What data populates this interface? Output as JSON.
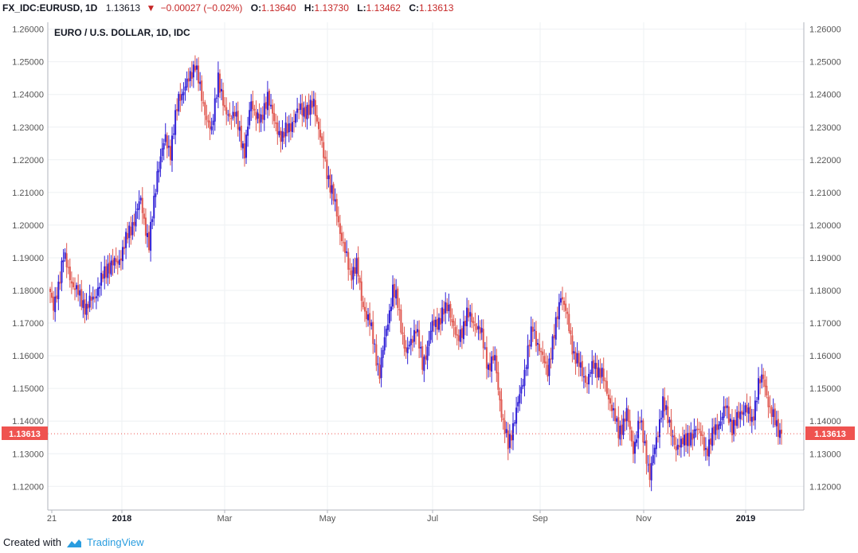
{
  "header": {
    "symbol": "FX_IDC:EURUSD, 1D",
    "last": "1.13613",
    "change": "−0.00027 (−0.02%)",
    "o_label": "O:",
    "o_value": "1.13640",
    "h_label": "H:",
    "h_value": "1.13730",
    "l_label": "L:",
    "l_value": "1.13462",
    "c_label": "C:",
    "c_value": "1.13613"
  },
  "footer": {
    "created_with": "Created with",
    "brand": "TradingView"
  },
  "chart_data": {
    "type": "candlestick",
    "title": "EURO / U.S. DOLLAR, 1D, IDC",
    "x_tick_labels": [
      "21",
      "2018",
      "Mar",
      "May",
      "Jul",
      "Sep",
      "Nov",
      "2019"
    ],
    "y_tick_labels": [
      "1.26000",
      "1.25000",
      "1.24000",
      "1.23000",
      "1.22000",
      "1.21000",
      "1.20000",
      "1.19000",
      "1.18000",
      "1.17000",
      "1.16000",
      "1.15000",
      "1.14000",
      "1.13000",
      "1.12000"
    ],
    "ylim": [
      1.116,
      1.264
    ],
    "last_price_label": "1.13613",
    "grid": true,
    "colors": {
      "up": "#2f1fd6",
      "down": "#e0574f",
      "last_price_bg": "#ef5350",
      "grid": "#eef0f3",
      "axis_text": "#555555"
    },
    "anchors": [
      [
        0,
        1.1795
      ],
      [
        2,
        1.1735
      ],
      [
        8,
        1.1905
      ],
      [
        14,
        1.1815
      ],
      [
        22,
        1.1745
      ],
      [
        27,
        1.1785
      ],
      [
        35,
        1.1875
      ],
      [
        41,
        1.1885
      ],
      [
        50,
        1.2005
      ],
      [
        55,
        1.2075
      ],
      [
        60,
        1.1935
      ],
      [
        65,
        1.2165
      ],
      [
        70,
        1.2265
      ],
      [
        73,
        1.2225
      ],
      [
        78,
        1.239
      ],
      [
        84,
        1.244
      ],
      [
        88,
        1.25
      ],
      [
        92,
        1.2385
      ],
      [
        98,
        1.228
      ],
      [
        102,
        1.246
      ],
      [
        106,
        1.234
      ],
      [
        112,
        1.234
      ],
      [
        118,
        1.2225
      ],
      [
        122,
        1.2375
      ],
      [
        128,
        1.231
      ],
      [
        132,
        1.2405
      ],
      [
        136,
        1.231
      ],
      [
        141,
        1.227
      ],
      [
        145,
        1.23
      ],
      [
        152,
        1.236
      ],
      [
        157,
        1.2345
      ],
      [
        160,
        1.238
      ],
      [
        166,
        1.221
      ],
      [
        172,
        1.208
      ],
      [
        176,
        1.1985
      ],
      [
        182,
        1.185
      ],
      [
        186,
        1.188
      ],
      [
        189,
        1.177
      ],
      [
        194,
        1.17
      ],
      [
        200,
        1.1545
      ],
      [
        204,
        1.168
      ],
      [
        208,
        1.18
      ],
      [
        211,
        1.176
      ],
      [
        216,
        1.16
      ],
      [
        222,
        1.169
      ],
      [
        226,
        1.157
      ],
      [
        232,
        1.169
      ],
      [
        236,
        1.171
      ],
      [
        242,
        1.1755
      ],
      [
        247,
        1.164
      ],
      [
        253,
        1.1725
      ],
      [
        258,
        1.17
      ],
      [
        262,
        1.166
      ],
      [
        266,
        1.1565
      ],
      [
        270,
        1.159
      ],
      [
        275,
        1.1385
      ],
      [
        278,
        1.133
      ],
      [
        283,
        1.1425
      ],
      [
        288,
        1.1555
      ],
      [
        293,
        1.169
      ],
      [
        298,
        1.16
      ],
      [
        302,
        1.156
      ],
      [
        306,
        1.166
      ],
      [
        310,
        1.1795
      ],
      [
        314,
        1.171
      ],
      [
        318,
        1.1605
      ],
      [
        322,
        1.156
      ],
      [
        326,
        1.152
      ],
      [
        330,
        1.1575
      ],
      [
        335,
        1.154
      ],
      [
        340,
        1.146
      ],
      [
        345,
        1.1365
      ],
      [
        350,
        1.142
      ],
      [
        354,
        1.1315
      ],
      [
        358,
        1.14
      ],
      [
        361,
        1.133
      ],
      [
        364,
        1.1225
      ],
      [
        368,
        1.135
      ],
      [
        372,
        1.145
      ],
      [
        376,
        1.14
      ],
      [
        380,
        1.13
      ],
      [
        384,
        1.1355
      ],
      [
        388,
        1.133
      ],
      [
        392,
        1.139
      ],
      [
        398,
        1.131
      ],
      [
        404,
        1.1375
      ],
      [
        410,
        1.144
      ],
      [
        414,
        1.1385
      ],
      [
        418,
        1.141
      ],
      [
        422,
        1.145
      ],
      [
        426,
        1.139
      ],
      [
        430,
        1.152
      ],
      [
        433,
        1.1525
      ],
      [
        437,
        1.144
      ],
      [
        441,
        1.138
      ],
      [
        444,
        1.1361
      ]
    ]
  }
}
